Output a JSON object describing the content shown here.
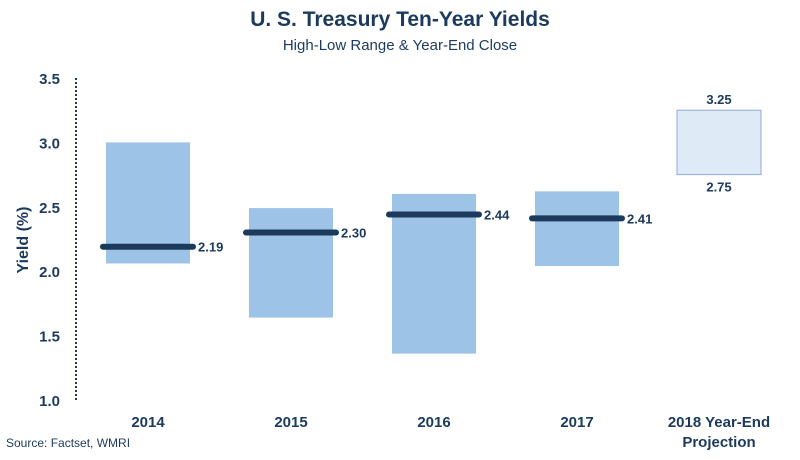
{
  "chart_data": {
    "type": "bar",
    "title": "U. S. Treasury Ten-Year Yields",
    "subtitle": "High-Low Range & Year-End Close",
    "ylabel": "Yield (%)",
    "xlabel": "",
    "ylim": [
      1.0,
      3.5
    ],
    "yticks": [
      "1.0",
      "1.5",
      "2.0",
      "2.5",
      "3.0",
      "3.5"
    ],
    "categories": [
      "2014",
      "2015",
      "2016",
      "2017",
      "2018 Year-End Projection"
    ],
    "ranges": [
      {
        "category": "2014",
        "low": 2.06,
        "high": 3.0,
        "close": 2.19,
        "close_label": "2.19"
      },
      {
        "category": "2015",
        "low": 1.64,
        "high": 2.49,
        "close": 2.3,
        "close_label": "2.30"
      },
      {
        "category": "2016",
        "low": 1.36,
        "high": 2.6,
        "close": 2.44,
        "close_label": "2.44"
      },
      {
        "category": "2017",
        "low": 2.04,
        "high": 2.62,
        "close": 2.41,
        "close_label": "2.41"
      }
    ],
    "projection": {
      "category": "2018 Year-End Projection",
      "low": 2.75,
      "high": 3.25,
      "low_label": "2.75",
      "high_label": "3.25"
    },
    "grid": false,
    "colors": {
      "range_bar": "#9dc3e6",
      "close_line": "#1b3a5c",
      "projection_fill": "#deebf7",
      "projection_border": "#8faadc",
      "text": "#1b3a5c"
    },
    "source": "Source: Factset, WMRI"
  }
}
